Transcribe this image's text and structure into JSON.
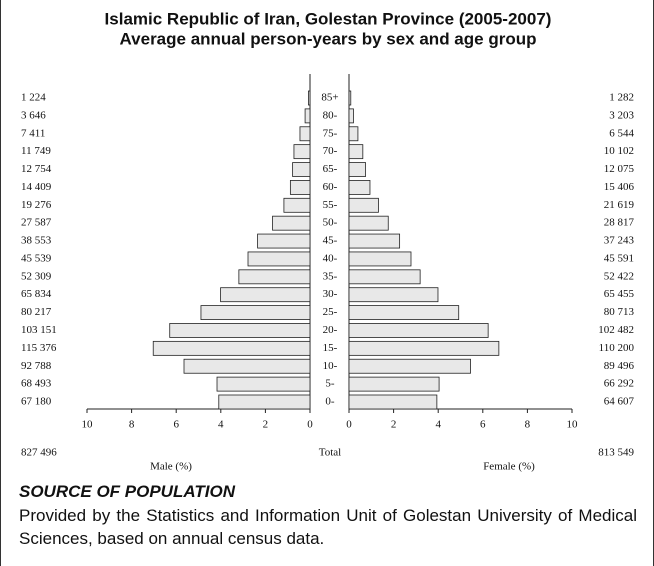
{
  "chart_data": {
    "type": "pyramid",
    "title": "Islamic Republic of Iran, Golestan Province (2005-2007)",
    "subtitle": "Average annual person-years by sex and age group",
    "categories": [
      "85+",
      "80-",
      "75-",
      "70-",
      "65-",
      "60-",
      "55-",
      "50-",
      "45-",
      "40-",
      "35-",
      "30-",
      "25-",
      "20-",
      "15-",
      "10-",
      "5-",
      "0-"
    ],
    "series": [
      {
        "name": "Male (%)",
        "color": "#e8e8e8",
        "values": [
          0.07,
          0.22,
          0.45,
          0.72,
          0.78,
          0.88,
          1.17,
          1.68,
          2.35,
          2.78,
          3.19,
          4.01,
          4.89,
          6.29,
          7.03,
          5.65,
          4.17,
          4.09
        ],
        "counts": [
          {
            "value": 1224,
            "label": "1 224"
          },
          {
            "value": 3646,
            "label": "3 646"
          },
          {
            "value": 7411,
            "label": "7 411"
          },
          {
            "value": 11749,
            "label": "11 749"
          },
          {
            "value": 12754,
            "label": "12 754"
          },
          {
            "value": 14409,
            "label": "14 409"
          },
          {
            "value": 19276,
            "label": "19 276"
          },
          {
            "value": 27587,
            "label": "27 587"
          },
          {
            "value": 38553,
            "label": "38 553"
          },
          {
            "value": 45539,
            "label": "45 539"
          },
          {
            "value": 52309,
            "label": "52 309"
          },
          {
            "value": 65834,
            "label": "65 834"
          },
          {
            "value": 80217,
            "label": "80 217"
          },
          {
            "value": 103151,
            "label": "103 151"
          },
          {
            "value": 115376,
            "label": "115 376"
          },
          {
            "value": 92788,
            "label": "92 788"
          },
          {
            "value": 68493,
            "label": "68 493"
          },
          {
            "value": 67180,
            "label": "67 180"
          }
        ],
        "total": {
          "value": 827496,
          "label": "827 496"
        }
      },
      {
        "name": "Female (%)",
        "color": "#e8e8e8",
        "values": [
          0.08,
          0.2,
          0.4,
          0.62,
          0.74,
          0.94,
          1.32,
          1.76,
          2.27,
          2.78,
          3.19,
          3.99,
          4.92,
          6.24,
          6.72,
          5.45,
          4.04,
          3.94
        ],
        "counts": [
          {
            "value": 1282,
            "label": "1 282"
          },
          {
            "value": 3203,
            "label": "3 203"
          },
          {
            "value": 6544,
            "label": "6 544"
          },
          {
            "value": 10102,
            "label": "10 102"
          },
          {
            "value": 12075,
            "label": "12 075"
          },
          {
            "value": 15406,
            "label": "15 406"
          },
          {
            "value": 21619,
            "label": "21 619"
          },
          {
            "value": 28817,
            "label": "28 817"
          },
          {
            "value": 37243,
            "label": "37 243"
          },
          {
            "value": 45591,
            "label": "45 591"
          },
          {
            "value": 52422,
            "label": "52 422"
          },
          {
            "value": 65455,
            "label": "65 455"
          },
          {
            "value": 80713,
            "label": "80 713"
          },
          {
            "value": 102482,
            "label": "102 482"
          },
          {
            "value": 110200,
            "label": "110 200"
          },
          {
            "value": 89496,
            "label": "89 496"
          },
          {
            "value": 66292,
            "label": "66 292"
          },
          {
            "value": 64607,
            "label": "64 607"
          }
        ],
        "total": {
          "value": 813549,
          "label": "813 549"
        }
      }
    ],
    "total_label": "Total",
    "xlim": [
      0,
      10
    ],
    "xticks": [
      0,
      2,
      4,
      6,
      8,
      10
    ]
  },
  "source": {
    "heading": "SOURCE OF POPULATION",
    "text": "Provided by the Statistics and Information Unit of Golestan University of Medical Sciences, based on annual census data."
  }
}
